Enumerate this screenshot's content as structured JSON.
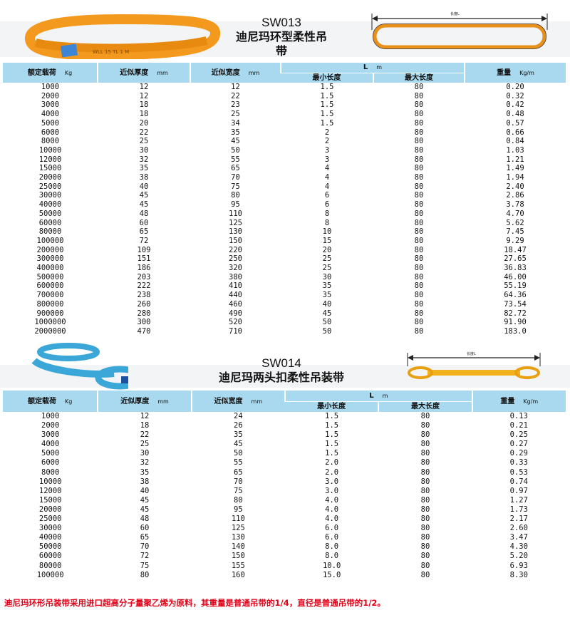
{
  "columns": {
    "load": "额定载荷",
    "load_unit": "Kg",
    "thickness": "近似厚度",
    "thickness_unit": "mm",
    "width": "近似宽度",
    "width_unit": "mm",
    "length": "L",
    "length_unit": "m",
    "min_length": "最小长度",
    "max_length": "最大长度",
    "weight": "重量",
    "weight_unit": "Kg/m"
  },
  "sections": [
    {
      "code": "SW013",
      "name": "迪尼玛环型柔性吊带",
      "diagram_label": "长度L",
      "photo_label": "WLL 15 TL 1 M",
      "product_color": "#f39a1e",
      "rows": [
        [
          "1000",
          "12",
          "12",
          "1.5",
          "80",
          "0.20"
        ],
        [
          "2000",
          "12",
          "22",
          "1.5",
          "80",
          "0.32"
        ],
        [
          "3000",
          "18",
          "23",
          "1.5",
          "80",
          "0.42"
        ],
        [
          "4000",
          "18",
          "25",
          "1.5",
          "80",
          "0.48"
        ],
        [
          "5000",
          "20",
          "34",
          "1.5",
          "80",
          "0.57"
        ],
        [
          "6000",
          "22",
          "35",
          "2",
          "80",
          "0.66"
        ],
        [
          "8000",
          "25",
          "45",
          "2",
          "80",
          "0.84"
        ],
        [
          "10000",
          "30",
          "50",
          "3",
          "80",
          "1.03"
        ],
        [
          "12000",
          "32",
          "55",
          "3",
          "80",
          "1.21"
        ],
        [
          "15000",
          "35",
          "65",
          "4",
          "80",
          "1.49"
        ],
        [
          "20000",
          "38",
          "70",
          "4",
          "80",
          "1.94"
        ],
        [
          "25000",
          "40",
          "75",
          "4",
          "80",
          "2.40"
        ],
        [
          "30000",
          "45",
          "80",
          "6",
          "80",
          "2.86"
        ],
        [
          "40000",
          "45",
          "95",
          "6",
          "80",
          "3.78"
        ],
        [
          "50000",
          "48",
          "110",
          "8",
          "80",
          "4.70"
        ],
        [
          "60000",
          "60",
          "125",
          "8",
          "80",
          "5.62"
        ],
        [
          "80000",
          "65",
          "130",
          "10",
          "80",
          "7.45"
        ],
        [
          "100000",
          "72",
          "150",
          "15",
          "80",
          "9.29"
        ],
        [
          "200000",
          "109",
          "220",
          "20",
          "80",
          "18.47"
        ],
        [
          "300000",
          "151",
          "250",
          "25",
          "80",
          "27.65"
        ],
        [
          "400000",
          "186",
          "320",
          "25",
          "80",
          "36.83"
        ],
        [
          "500000",
          "203",
          "380",
          "30",
          "80",
          "46.00"
        ],
        [
          "600000",
          "222",
          "410",
          "35",
          "80",
          "55.19"
        ],
        [
          "700000",
          "238",
          "440",
          "35",
          "80",
          "64.36"
        ],
        [
          "800000",
          "260",
          "460",
          "40",
          "80",
          "73.54"
        ],
        [
          "900000",
          "280",
          "490",
          "45",
          "80",
          "82.72"
        ],
        [
          "1000000",
          "300",
          "520",
          "50",
          "80",
          "91.90"
        ],
        [
          "2000000",
          "470",
          "710",
          "50",
          "80",
          "183.0"
        ]
      ]
    },
    {
      "code": "SW014",
      "name": "迪尼玛两头扣柔性吊装带",
      "diagram_label": "长度L",
      "product_color": "#3aa7d8",
      "rows": [
        [
          "1000",
          "12",
          "24",
          "1.5",
          "80",
          "0.13"
        ],
        [
          "2000",
          "18",
          "26",
          "1.5",
          "80",
          "0.21"
        ],
        [
          "3000",
          "22",
          "35",
          "1.5",
          "80",
          "0.25"
        ],
        [
          "4000",
          "25",
          "45",
          "1.5",
          "80",
          "0.27"
        ],
        [
          "5000",
          "30",
          "50",
          "1.5",
          "80",
          "0.29"
        ],
        [
          "6000",
          "32",
          "55",
          "2.0",
          "80",
          "0.33"
        ],
        [
          "8000",
          "35",
          "65",
          "2.0",
          "80",
          "0.53"
        ],
        [
          "10000",
          "38",
          "70",
          "3.0",
          "80",
          "0.74"
        ],
        [
          "12000",
          "40",
          "75",
          "3.0",
          "80",
          "0.97"
        ],
        [
          "15000",
          "45",
          "80",
          "4.0",
          "80",
          "1.27"
        ],
        [
          "20000",
          "45",
          "95",
          "4.0",
          "80",
          "1.73"
        ],
        [
          "25000",
          "48",
          "110",
          "4.0",
          "80",
          "2.17"
        ],
        [
          "30000",
          "60",
          "125",
          "6.0",
          "80",
          "2.60"
        ],
        [
          "40000",
          "65",
          "130",
          "6.0",
          "80",
          "3.47"
        ],
        [
          "50000",
          "70",
          "140",
          "8.0",
          "80",
          "4.30"
        ],
        [
          "60000",
          "72",
          "150",
          "8.0",
          "80",
          "5.20"
        ],
        [
          "80000",
          "75",
          "155",
          "10.0",
          "80",
          "6.93"
        ],
        [
          "100000",
          "80",
          "160",
          "15.0",
          "80",
          "8.30"
        ]
      ]
    }
  ],
  "note": "迪尼玛环形吊装带采用进口超高分子量聚乙烯为原料，其重量是普通吊带的1/4，直径是普通吊带的1/2。",
  "header_color": "#a9d9ee",
  "note_color": "#e00018"
}
